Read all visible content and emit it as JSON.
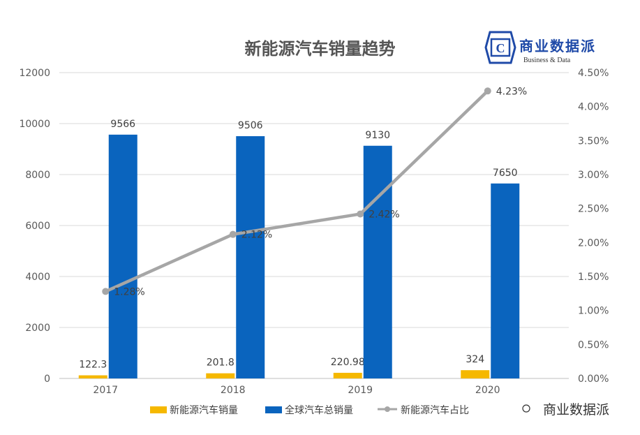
{
  "chart_data": {
    "type": "bar+line",
    "title": "新能源汽车销量趋势",
    "categories": [
      "2017",
      "2018",
      "2019",
      "2020"
    ],
    "series": [
      {
        "name": "新能源汽车销量",
        "type": "bar",
        "axis": "left",
        "color": "#f5b800",
        "values": [
          122.3,
          201.8,
          220.98,
          324
        ],
        "labels": [
          "122.3",
          "201.8",
          "220.98",
          "324"
        ]
      },
      {
        "name": "全球汽车总销量",
        "type": "bar",
        "axis": "left",
        "color": "#0a64be",
        "values": [
          9566,
          9506,
          9130,
          7650
        ],
        "labels": [
          "9566",
          "9506",
          "9130",
          "7650"
        ]
      },
      {
        "name": "新能源汽车占比",
        "type": "line",
        "axis": "right",
        "color": "#a6a6a6",
        "values": [
          1.28,
          2.12,
          2.42,
          4.23
        ],
        "labels": [
          "1.28%",
          "2.12%",
          "2.42%",
          "4.23%"
        ]
      }
    ],
    "y_left": {
      "min": 0,
      "max": 12000,
      "step": 2000,
      "ticks": [
        "0",
        "2000",
        "4000",
        "6000",
        "8000",
        "10000",
        "12000"
      ]
    },
    "y_right": {
      "min": 0,
      "max": 4.5,
      "step": 0.5,
      "ticks": [
        "0.00%",
        "0.50%",
        "1.00%",
        "1.50%",
        "2.00%",
        "2.50%",
        "3.00%",
        "3.50%",
        "4.00%",
        "4.50%"
      ]
    },
    "grid": true,
    "legend_position": "bottom"
  },
  "logo": {
    "name": "商业数据派",
    "subtitle": "Business & Data",
    "letter": "C"
  },
  "watermark": {
    "text": "商业数据派"
  },
  "colors": {
    "axis_text": "#595959",
    "grid": "#d9d9d9",
    "label": "#404040"
  }
}
